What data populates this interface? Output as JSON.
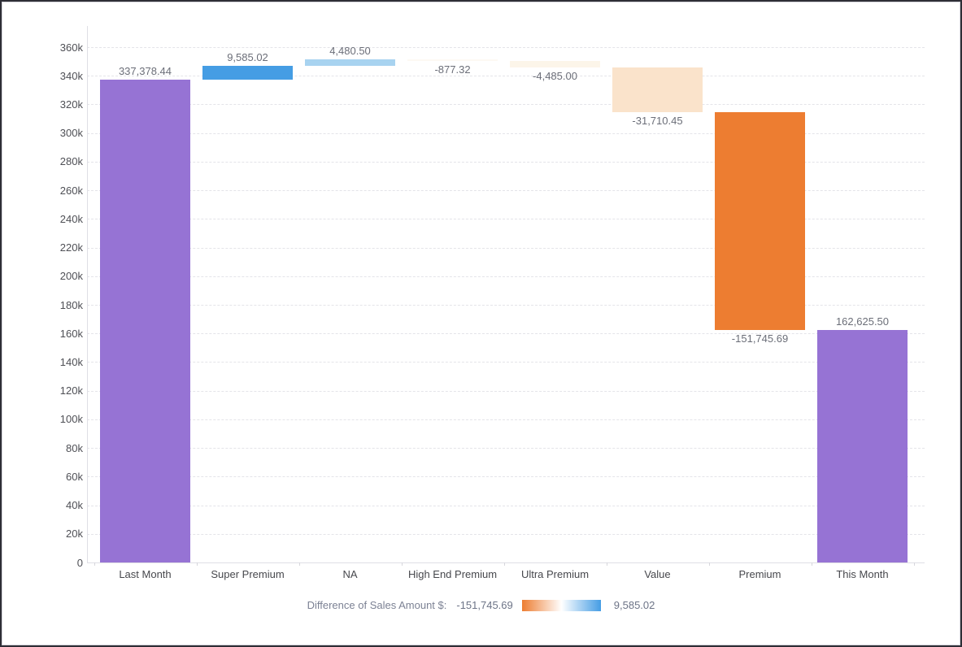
{
  "chart_data": {
    "type": "waterfall",
    "categories": [
      "Last Month",
      "Super Premium",
      "NA",
      "High End Premium",
      "Ultra Premium",
      "Value",
      "Premium",
      "This Month"
    ],
    "values": [
      337378.44,
      9585.02,
      4480.5,
      -877.32,
      -4485.0,
      -31710.45,
      -151745.69,
      162625.5
    ],
    "value_labels": [
      "337,378.44",
      "9,585.02",
      "4,480.50",
      "-877.32",
      "-4,485.00",
      "-31,710.45",
      "-151,745.69",
      "162,625.50"
    ],
    "bar_types": [
      "total",
      "increase",
      "increase",
      "decrease",
      "decrease",
      "decrease",
      "decrease",
      "total"
    ],
    "bar_colors": [
      "#9673d4",
      "#459de4",
      "#a8d3f0",
      "#fdf9f3",
      "#fcf5e9",
      "#fae3cb",
      "#ed7d31",
      "#9673d4"
    ],
    "ylim": [
      0,
      360000
    ],
    "ytick_step": 20000,
    "ytick_labels": [
      "0",
      "20k",
      "40k",
      "60k",
      "80k",
      "100k",
      "120k",
      "140k",
      "160k",
      "180k",
      "200k",
      "220k",
      "240k",
      "260k",
      "280k",
      "300k",
      "320k",
      "340k",
      "360k"
    ],
    "grid": "horizontal-dashed",
    "legend_position": "bottom"
  },
  "legend": {
    "label": "Difference of Sales Amount $:",
    "min_value": "-151,745.69",
    "max_value": "9,585.02",
    "gradient": [
      "#ed7d31",
      "#ffffff",
      "#459de4"
    ]
  },
  "colors": {
    "total_bar": "#9673d4",
    "increase_max": "#459de4",
    "decrease_max": "#ed7d31",
    "grid": "#e4e4e9",
    "axis": "#dfdfe5",
    "axis_text": "#4e4f55",
    "data_label_text": "#6b6e78",
    "legend_text": "#7c8294",
    "background": "#ffffff",
    "frame_border": "#2e2e36"
  }
}
